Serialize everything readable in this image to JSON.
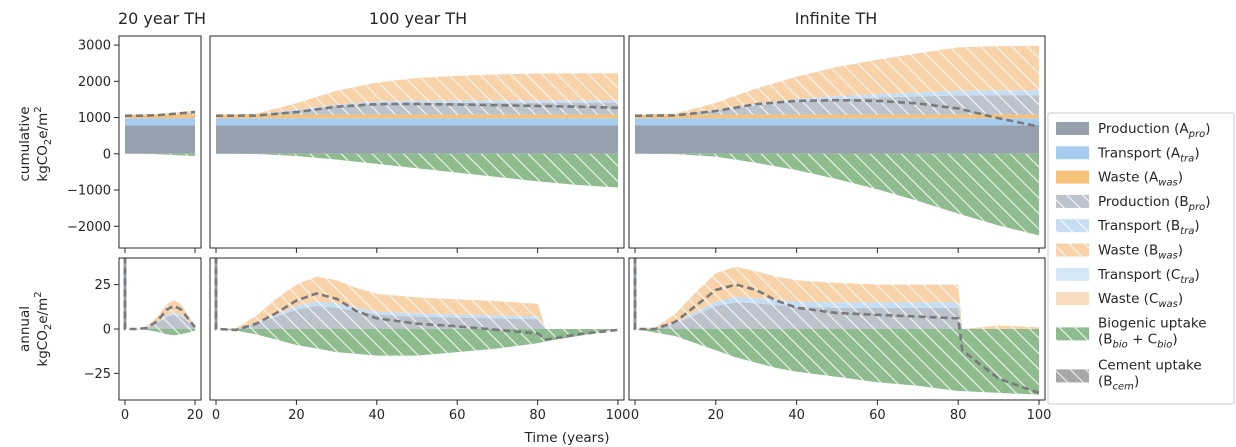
{
  "figure": {
    "panel_titles": [
      "20 year TH",
      "100 year TH",
      "Infinite TH"
    ],
    "row_labels": [
      {
        "line1": "cumulative",
        "line2": "kgCO",
        "sub": "2",
        "line2b": "e/m",
        "sup": "2"
      },
      {
        "line1": "annual",
        "line2": "kgCO",
        "sub": "2",
        "line2b": "e/m",
        "sup": "2"
      }
    ],
    "xlabel": "Time (years)"
  },
  "legend": [
    {
      "name": "Production (A",
      "sub": "pro",
      "tail": ")",
      "color": "#97a1ae",
      "hatch": false
    },
    {
      "name": "Transport (A",
      "sub": "tra",
      "tail": ")",
      "color": "#a6cdf0",
      "hatch": false
    },
    {
      "name": "Waste (A",
      "sub": "was",
      "tail": ")",
      "color": "#f6c27a",
      "hatch": false
    },
    {
      "name": "Production (B",
      "sub": "pro",
      "tail": ")",
      "color": "#bcc3cd",
      "hatch": true
    },
    {
      "name": "Transport (B",
      "sub": "tra",
      "tail": ")",
      "color": "#c6def4",
      "hatch": true
    },
    {
      "name": "Waste (B",
      "sub": "was",
      "tail": ")",
      "color": "#f8d2a8",
      "hatch": true
    },
    {
      "name": "Transport (C",
      "sub": "tra",
      "tail": ")",
      "color": "#d6e8f7",
      "hatch": false
    },
    {
      "name": "Waste (C",
      "sub": "was",
      "tail": ")",
      "color": "#f9dcc0",
      "hatch": false
    },
    {
      "name": "Biogenic uptake",
      "line2": "(B",
      "sub": "bio",
      "mid": " + C",
      "sub2": "bio",
      "tail": ")",
      "color": "#8fbc8f",
      "hatch": true
    },
    {
      "name": "Cement uptake",
      "line2": "(B",
      "sub": "cem",
      "tail": ")",
      "color": "#a8a8a8",
      "hatch": true
    }
  ],
  "chart_data": [
    {
      "type": "area",
      "title": "20 year TH",
      "row": "cumulative",
      "xlim": [
        0,
        20
      ],
      "ylim": [
        -2600,
        3250
      ],
      "yticks": [
        -2000,
        -1000,
        0,
        1000,
        2000,
        3000
      ],
      "xticks": [
        0,
        20
      ],
      "series": {
        "x": [
          0,
          5,
          10,
          15,
          20
        ],
        "A_pro": 780,
        "A_tra": 200,
        "A_was": 100,
        "B_pro": [
          0,
          0,
          5,
          20,
          40
        ],
        "B_tra": [
          0,
          0,
          2,
          5,
          8
        ],
        "B_was": [
          0,
          0,
          10,
          40,
          70
        ],
        "bio": [
          0,
          0,
          -15,
          -40,
          -60
        ],
        "net": [
          1050,
          1050,
          1070,
          1110,
          1150
        ]
      }
    },
    {
      "type": "area",
      "title": "100 year TH",
      "row": "cumulative",
      "xlim": [
        0,
        100
      ],
      "ylim": [
        -2600,
        3250
      ],
      "yticks": [
        -2000,
        -1000,
        0,
        1000,
        2000,
        3000
      ],
      "xticks": [
        0,
        20,
        40,
        60,
        80,
        100
      ],
      "series": {
        "x": [
          0,
          10,
          20,
          30,
          40,
          50,
          60,
          70,
          80,
          90,
          100
        ],
        "A_pro": 780,
        "A_tra": 200,
        "A_was": 100,
        "B_pro": [
          0,
          10,
          110,
          230,
          300,
          320,
          320,
          320,
          320,
          320,
          320
        ],
        "B_tra": [
          0,
          2,
          25,
          50,
          65,
          70,
          70,
          70,
          72,
          72,
          72
        ],
        "B_was": [
          0,
          15,
          180,
          380,
          520,
          620,
          680,
          720,
          740,
          750,
          750
        ],
        "bio": [
          0,
          -5,
          -60,
          -160,
          -280,
          -400,
          -520,
          -640,
          -760,
          -860,
          -930
        ],
        "net": [
          1050,
          1055,
          1150,
          1300,
          1370,
          1375,
          1360,
          1340,
          1320,
          1300,
          1270
        ]
      }
    },
    {
      "type": "area",
      "title": "Infinite TH",
      "row": "cumulative",
      "xlim": [
        0,
        100
      ],
      "ylim": [
        -2600,
        3250
      ],
      "yticks": [
        -2000,
        -1000,
        0,
        1000,
        2000,
        3000
      ],
      "xticks": [
        0,
        20,
        40,
        60,
        80,
        100
      ],
      "series": {
        "x": [
          0,
          10,
          20,
          30,
          40,
          50,
          60,
          70,
          80,
          90,
          100
        ],
        "A_pro": 780,
        "A_tra": 200,
        "A_was": 100,
        "B_pro": [
          0,
          10,
          110,
          250,
          360,
          430,
          470,
          500,
          530,
          540,
          540
        ],
        "B_tra": [
          0,
          2,
          25,
          50,
          70,
          85,
          95,
          110,
          125,
          130,
          130
        ],
        "B_was": [
          0,
          15,
          190,
          420,
          620,
          800,
          950,
          1080,
          1200,
          1220,
          1230
        ],
        "bio": [
          0,
          -8,
          -80,
          -250,
          -450,
          -700,
          -980,
          -1300,
          -1650,
          -1980,
          -2250
        ],
        "net": [
          1050,
          1060,
          1180,
          1370,
          1460,
          1480,
          1460,
          1390,
          1250,
          980,
          750
        ]
      }
    },
    {
      "type": "area",
      "title": "",
      "row": "annual",
      "xlim": [
        0,
        20
      ],
      "ylim": [
        -40,
        40
      ],
      "yticks": [
        -25,
        0,
        25
      ],
      "xticks": [
        0,
        20
      ],
      "spike": 78,
      "series": {
        "x": [
          0,
          3,
          6,
          9,
          12,
          14,
          16,
          18,
          20
        ],
        "B_pro": [
          0,
          0,
          0.5,
          3,
          7,
          8,
          7,
          4,
          1
        ],
        "B_tra": [
          0,
          0,
          0.1,
          0.5,
          1,
          1.2,
          1,
          0.5,
          0.2
        ],
        "B_was": [
          0,
          0,
          0.5,
          3,
          6,
          7,
          6,
          3,
          1
        ],
        "bio": [
          0,
          0,
          -0.5,
          -1.5,
          -3,
          -3.5,
          -3,
          -2,
          -1
        ],
        "net": [
          0,
          0,
          0.5,
          4,
          11,
          13,
          11,
          6,
          1
        ]
      }
    },
    {
      "type": "area",
      "title": "",
      "row": "annual",
      "xlim": [
        0,
        100
      ],
      "ylim": [
        -40,
        40
      ],
      "yticks": [
        -25,
        0,
        25
      ],
      "xticks": [
        0,
        20,
        40,
        60,
        80,
        100
      ],
      "spike": 78,
      "series": {
        "x": [
          0,
          5,
          10,
          15,
          20,
          25,
          30,
          35,
          40,
          50,
          60,
          70,
          80,
          82,
          90,
          100
        ],
        "B_pro": [
          0,
          0.2,
          3,
          7,
          11,
          13,
          12,
          10,
          8,
          7,
          6.5,
          6,
          5.5,
          0,
          0,
          0
        ],
        "B_tra": [
          0,
          0,
          0.5,
          1,
          2,
          2.5,
          2.5,
          2,
          1.8,
          1.8,
          1.7,
          1.7,
          1.7,
          0,
          0,
          0
        ],
        "B_was": [
          0,
          0.3,
          4,
          9,
          12,
          14,
          13,
          11,
          10,
          9,
          8.5,
          8,
          7,
          0,
          0,
          0
        ],
        "bio": [
          0,
          -1,
          -3,
          -6,
          -9,
          -11,
          -13,
          -14,
          -15,
          -15,
          -13,
          -11,
          -8,
          -7,
          -4,
          0
        ],
        "net": [
          0,
          -0.5,
          3,
          9,
          16,
          20,
          17,
          10,
          6,
          3,
          1.5,
          -0.5,
          -2.5,
          -6,
          -3,
          -0.5
        ]
      }
    },
    {
      "type": "area",
      "title": "",
      "row": "annual",
      "xlim": [
        0,
        100
      ],
      "ylim": [
        -40,
        40
      ],
      "yticks": [
        -25,
        0,
        25
      ],
      "xticks": [
        0,
        20,
        40,
        60,
        80,
        100
      ],
      "spike": 78,
      "series": {
        "x": [
          0,
          5,
          10,
          15,
          20,
          25,
          30,
          35,
          40,
          50,
          60,
          70,
          80,
          81,
          90,
          100
        ],
        "B_pro": [
          0,
          0.3,
          3,
          8,
          13,
          15,
          14.5,
          13.5,
          12.5,
          12,
          12,
          12,
          12,
          0,
          0,
          0
        ],
        "B_tra": [
          0,
          0,
          0.5,
          1.5,
          2.5,
          3,
          3,
          3,
          3,
          3,
          3,
          3,
          3,
          0,
          0,
          0
        ],
        "B_was": [
          0,
          0.5,
          5,
          11,
          16,
          17,
          15,
          13,
          12,
          11,
          10,
          10,
          10,
          0,
          2,
          1
        ],
        "bio": [
          0,
          -2,
          -4,
          -8,
          -12,
          -16,
          -19,
          -22,
          -24,
          -27,
          -30,
          -32,
          -35,
          -35,
          -36,
          -37
        ],
        "net": [
          0,
          0,
          4,
          13,
          22,
          25,
          22,
          16,
          12,
          9,
          8,
          7,
          6,
          -12,
          -28,
          -36
        ]
      }
    }
  ]
}
